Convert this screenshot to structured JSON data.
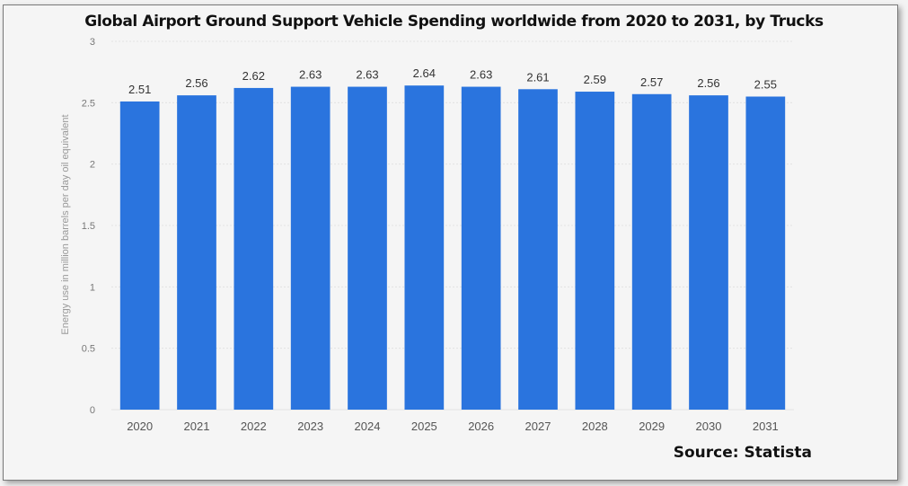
{
  "chart_data": {
    "type": "bar",
    "title": "Global Airport Ground Support Vehicle Spending worldwide from 2020 to 2031, by Trucks",
    "xlabel": "",
    "ylabel": "Energy use in million barrels per day oil equivalent",
    "categories": [
      "2020",
      "2021",
      "2022",
      "2023",
      "2024",
      "2025",
      "2026",
      "2027",
      "2028",
      "2029",
      "2030",
      "2031"
    ],
    "values": [
      2.51,
      2.56,
      2.62,
      2.63,
      2.63,
      2.64,
      2.63,
      2.61,
      2.59,
      2.57,
      2.56,
      2.55
    ],
    "value_labels": [
      "2.51",
      "2.56",
      "2.62",
      "2.63",
      "2.63",
      "2.64",
      "2.63",
      "2.61",
      "2.59",
      "2.57",
      "2.56",
      "2.55"
    ],
    "ylim": [
      0,
      3
    ],
    "yticks": [
      "0",
      "0.5",
      "1",
      "1.5",
      "2",
      "2.5",
      "3"
    ],
    "grid": true,
    "bar_color": "#2a74de",
    "source": "Source: Statista"
  }
}
